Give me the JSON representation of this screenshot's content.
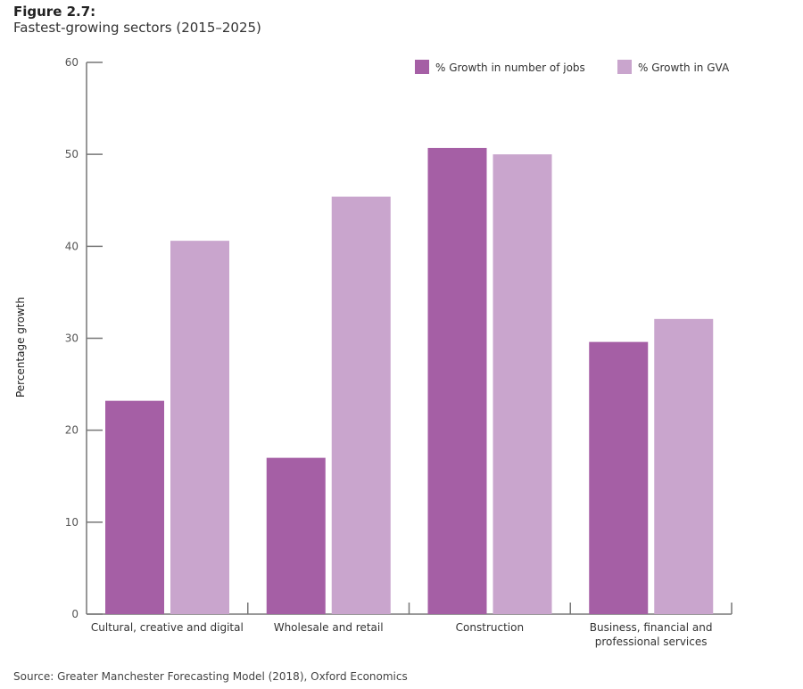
{
  "figure_label": "Figure 2.7:",
  "source": "Source: Greater Manchester Forecasting Model (2018), Oxford Economics",
  "chart_data": {
    "type": "bar",
    "title": "Fastest-growing sectors (2015–2025)",
    "xlabel": "",
    "ylabel": "Percentage growth",
    "ylim": [
      0,
      60
    ],
    "yticks": [
      0,
      10,
      20,
      30,
      40,
      50,
      60
    ],
    "grid": false,
    "legend_position": "top-right",
    "categories": [
      [
        "Cultural, creative and digital"
      ],
      [
        "Wholesale and retail"
      ],
      [
        "Construction"
      ],
      [
        "Business, financial and",
        "professional services"
      ]
    ],
    "series": [
      {
        "name": "% Growth in number of jobs",
        "color": "#a55fa5",
        "values": [
          23.2,
          17.0,
          50.7,
          29.6
        ]
      },
      {
        "name": "% Growth in GVA",
        "color": "#c9a5cd",
        "values": [
          40.6,
          45.4,
          50.0,
          32.1
        ]
      }
    ]
  }
}
